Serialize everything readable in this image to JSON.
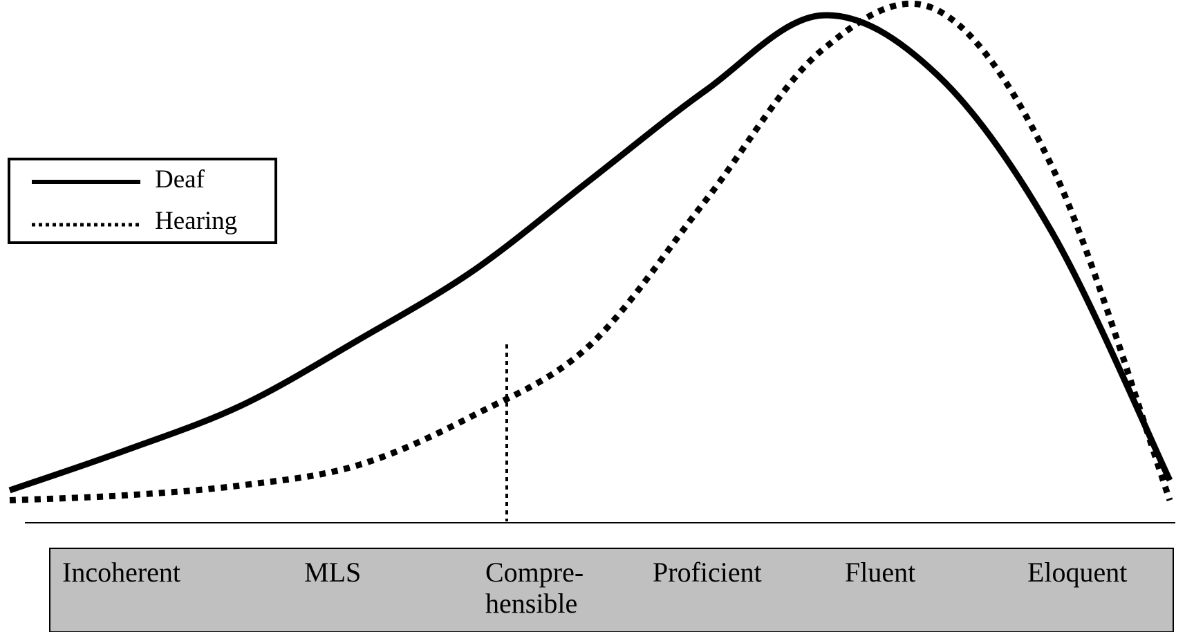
{
  "chart_data": {
    "type": "line",
    "title": "",
    "xlabel": "",
    "ylabel": "",
    "categories": [
      "Incoherent",
      "MLS",
      "Compre-\nhensible",
      "Proficient",
      "Fluent",
      "Eloquent"
    ],
    "x": [
      0,
      0.1,
      0.2,
      0.3,
      0.4,
      0.5,
      0.6,
      0.7,
      0.8,
      0.9,
      1.0
    ],
    "series": [
      {
        "name": "Deaf",
        "line_style": "solid",
        "values": [
          0.04,
          0.12,
          0.21,
          0.34,
          0.48,
          0.66,
          0.84,
          0.99,
          0.87,
          0.55,
          0.06
        ]
      },
      {
        "name": "Hearing",
        "line_style": "dotted",
        "values": [
          0.02,
          0.03,
          0.05,
          0.09,
          0.19,
          0.33,
          0.62,
          0.92,
          1.0,
          0.68,
          0.02
        ]
      }
    ],
    "marker": {
      "style": "dotted",
      "at_category": "Compre-\nhensible"
    },
    "legend": {
      "position": "left",
      "entries": [
        "Deaf",
        "Hearing"
      ]
    },
    "grid": false,
    "category_band_color": "#c0c0c0"
  }
}
